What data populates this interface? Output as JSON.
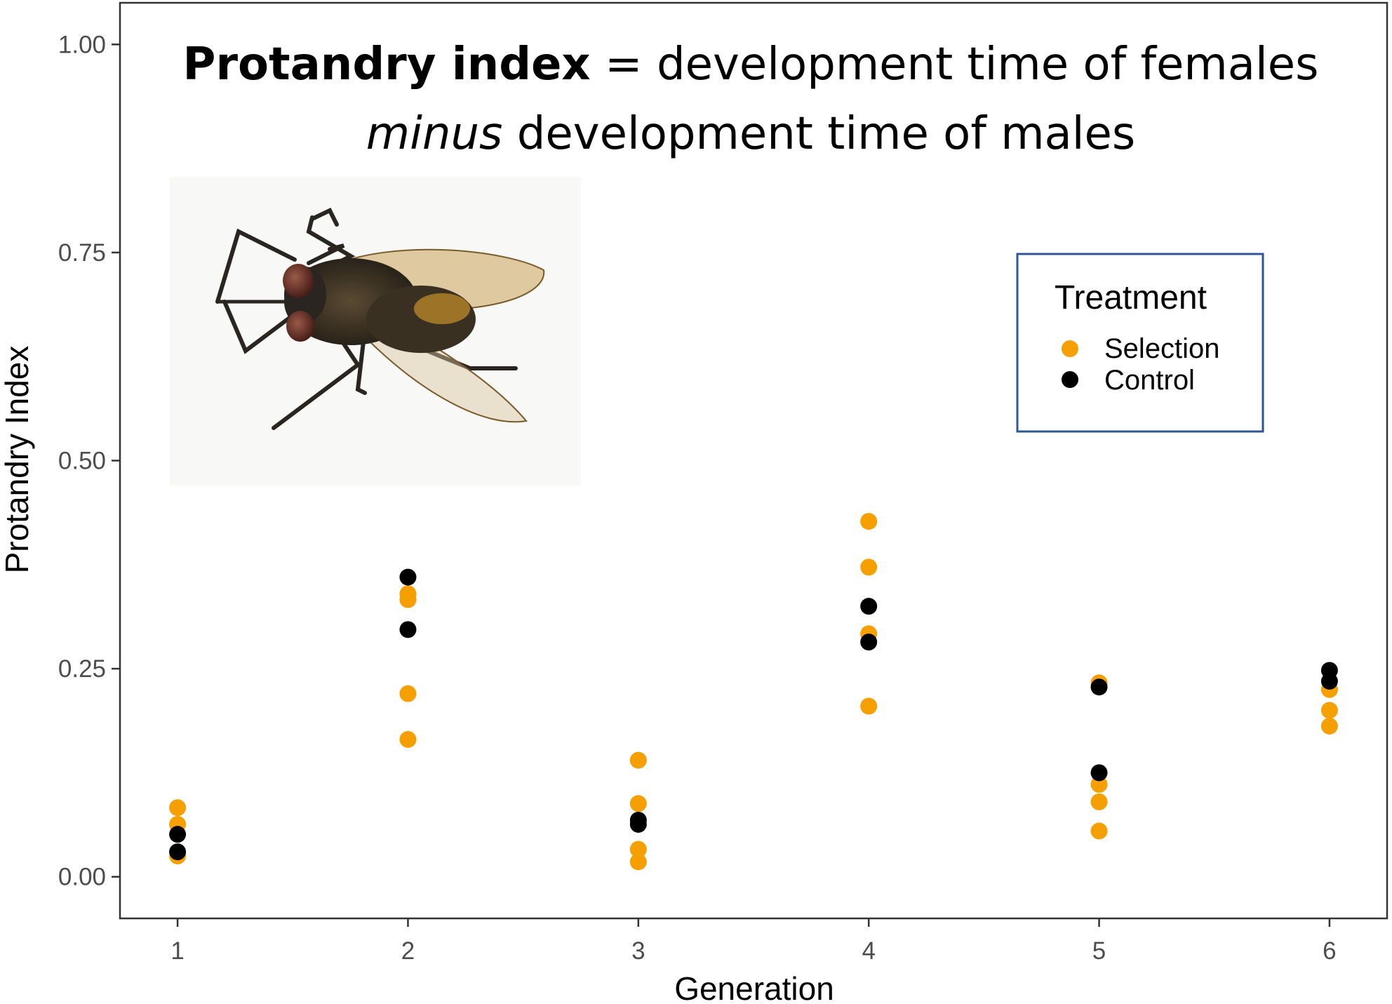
{
  "chart_data": {
    "type": "scatter",
    "title": "",
    "xlabel": "Generation",
    "ylabel": "Protandry Index",
    "x_ticks": [
      "1",
      "2",
      "3",
      "4",
      "5",
      "6"
    ],
    "y_ticks": [
      "0.00",
      "0.25",
      "0.50",
      "0.75",
      "1.00"
    ],
    "xlim": [
      0.75,
      6.25
    ],
    "ylim": [
      -0.05,
      1.05
    ],
    "grid": false,
    "annotation": {
      "line1_bold": "Protandry index",
      "line1_rest": " = development time of females",
      "line2_italic": "minus",
      "line2_rest": " development time of males"
    },
    "legend": {
      "title": "Treatment",
      "placement": "top-right",
      "border_color": "#2f5597"
    },
    "series": [
      {
        "name": "Selection",
        "color": "#f5a000",
        "points": [
          {
            "x": 1,
            "y": 0.083
          },
          {
            "x": 1,
            "y": 0.063
          },
          {
            "x": 1,
            "y": 0.025
          },
          {
            "x": 2,
            "y": 0.34
          },
          {
            "x": 2,
            "y": 0.333
          },
          {
            "x": 2,
            "y": 0.22
          },
          {
            "x": 2,
            "y": 0.165
          },
          {
            "x": 3,
            "y": 0.14
          },
          {
            "x": 3,
            "y": 0.088
          },
          {
            "x": 3,
            "y": 0.033
          },
          {
            "x": 3,
            "y": 0.018
          },
          {
            "x": 4,
            "y": 0.427
          },
          {
            "x": 4,
            "y": 0.372
          },
          {
            "x": 4,
            "y": 0.292
          },
          {
            "x": 4,
            "y": 0.205
          },
          {
            "x": 5,
            "y": 0.233
          },
          {
            "x": 5,
            "y": 0.111
          },
          {
            "x": 5,
            "y": 0.09
          },
          {
            "x": 5,
            "y": 0.055
          },
          {
            "x": 6,
            "y": 0.225
          },
          {
            "x": 6,
            "y": 0.2
          },
          {
            "x": 6,
            "y": 0.181
          }
        ]
      },
      {
        "name": "Control",
        "color": "#000000",
        "points": [
          {
            "x": 1,
            "y": 0.051
          },
          {
            "x": 1,
            "y": 0.03
          },
          {
            "x": 2,
            "y": 0.36
          },
          {
            "x": 2,
            "y": 0.297
          },
          {
            "x": 3,
            "y": 0.068
          },
          {
            "x": 3,
            "y": 0.063
          },
          {
            "x": 4,
            "y": 0.325
          },
          {
            "x": 4,
            "y": 0.282
          },
          {
            "x": 5,
            "y": 0.228
          },
          {
            "x": 5,
            "y": 0.125
          },
          {
            "x": 6,
            "y": 0.248
          },
          {
            "x": 6,
            "y": 0.235
          }
        ]
      }
    ]
  }
}
